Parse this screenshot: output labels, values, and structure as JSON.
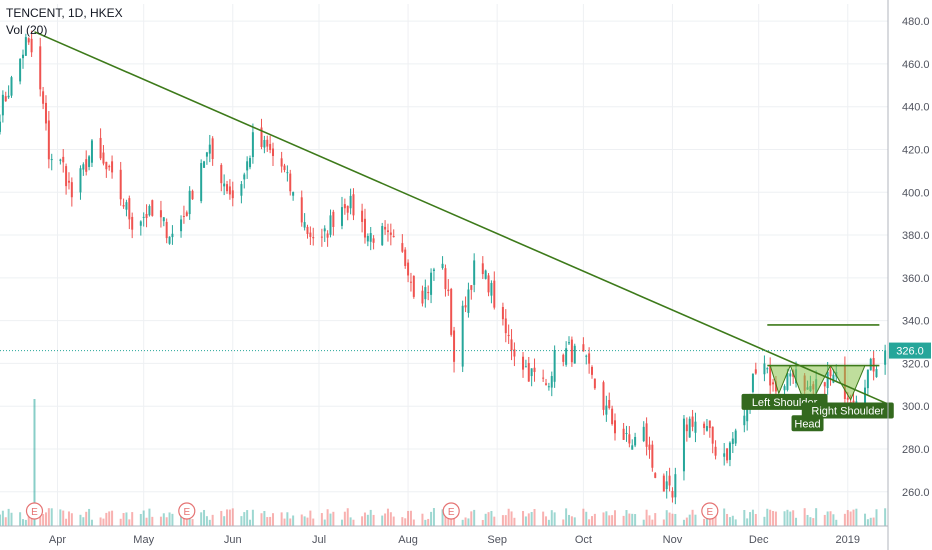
{
  "header": {
    "symbol_line": "TENCENT, 1D, HKEX",
    "volume_label": "Vol (20)"
  },
  "price_tag": {
    "value": "326.0",
    "price": 326.0,
    "color": "#26a69a"
  },
  "colors": {
    "up": "#26a69a",
    "down": "#ef5350",
    "trend": "#3d7a1a",
    "pattern": "#8bc34a",
    "event": "#e57373"
  },
  "event_marker_label": "E",
  "chart_data": {
    "type": "candlestick",
    "ylim": [
      244,
      488
    ],
    "y_ticks": [
      260,
      280,
      300,
      320,
      340,
      360,
      380,
      400,
      420,
      440,
      460,
      480
    ],
    "y_tick_labels": [
      "260.0",
      "280.0",
      "300.0",
      "320.0",
      "340.0",
      "360.0",
      "380.0",
      "400.0",
      "420.0",
      "440.0",
      "460.0",
      "480.0"
    ],
    "x_range": [
      "2018-03-12",
      "2019-01-15"
    ],
    "x_ticks": [
      {
        "label": "Apr",
        "date": "2018-04-01"
      },
      {
        "label": "May",
        "date": "2018-05-01"
      },
      {
        "label": "Jun",
        "date": "2018-06-01"
      },
      {
        "label": "Jul",
        "date": "2018-07-01"
      },
      {
        "label": "Aug",
        "date": "2018-08-01"
      },
      {
        "label": "Sep",
        "date": "2018-09-01"
      },
      {
        "label": "Oct",
        "date": "2018-10-01"
      },
      {
        "label": "Nov",
        "date": "2018-11-01"
      },
      {
        "label": "Dec",
        "date": "2018-12-01"
      },
      {
        "label": "2019",
        "date": "2019-01-01"
      }
    ],
    "price_path": [
      [
        "2018-03-12",
        438
      ],
      [
        "2018-03-15",
        448
      ],
      [
        "2018-03-19",
        462
      ],
      [
        "2018-03-21",
        470
      ],
      [
        "2018-03-23",
        465
      ],
      [
        "2018-03-27",
        440
      ],
      [
        "2018-03-29",
        418
      ],
      [
        "2018-04-03",
        412
      ],
      [
        "2018-04-06",
        398
      ],
      [
        "2018-04-10",
        410
      ],
      [
        "2018-04-13",
        420
      ],
      [
        "2018-04-18",
        410
      ],
      [
        "2018-04-23",
        398
      ],
      [
        "2018-04-27",
        386
      ],
      [
        "2018-05-02",
        390
      ],
      [
        "2018-05-07",
        386
      ],
      [
        "2018-05-11",
        380
      ],
      [
        "2018-05-16",
        392
      ],
      [
        "2018-05-21",
        415
      ],
      [
        "2018-05-24",
        418
      ],
      [
        "2018-05-29",
        405
      ],
      [
        "2018-06-01",
        398
      ],
      [
        "2018-06-05",
        408
      ],
      [
        "2018-06-08",
        424
      ],
      [
        "2018-06-13",
        420
      ],
      [
        "2018-06-18",
        412
      ],
      [
        "2018-06-22",
        398
      ],
      [
        "2018-06-27",
        382
      ],
      [
        "2018-07-02",
        376
      ],
      [
        "2018-07-05",
        386
      ],
      [
        "2018-07-10",
        396
      ],
      [
        "2018-07-13",
        392
      ],
      [
        "2018-07-18",
        380
      ],
      [
        "2018-07-23",
        380
      ],
      [
        "2018-07-27",
        375
      ],
      [
        "2018-08-01",
        366
      ],
      [
        "2018-08-04",
        350
      ],
      [
        "2018-08-08",
        356
      ],
      [
        "2018-08-12",
        372
      ],
      [
        "2018-08-15",
        350
      ],
      [
        "2018-08-17",
        322
      ],
      [
        "2018-08-21",
        350
      ],
      [
        "2018-08-24",
        364
      ],
      [
        "2018-08-29",
        358
      ],
      [
        "2018-09-03",
        336
      ],
      [
        "2018-09-07",
        326
      ],
      [
        "2018-09-12",
        316
      ],
      [
        "2018-09-18",
        310
      ],
      [
        "2018-09-21",
        322
      ],
      [
        "2018-09-26",
        326
      ],
      [
        "2018-10-01",
        322
      ],
      [
        "2018-10-04",
        312
      ],
      [
        "2018-10-09",
        298
      ],
      [
        "2018-10-12",
        290
      ],
      [
        "2018-10-17",
        282
      ],
      [
        "2018-10-22",
        288
      ],
      [
        "2018-10-25",
        272
      ],
      [
        "2018-10-29",
        262
      ],
      [
        "2018-11-01",
        256
      ],
      [
        "2018-11-05",
        290
      ],
      [
        "2018-11-08",
        294
      ],
      [
        "2018-11-13",
        288
      ],
      [
        "2018-11-16",
        280
      ],
      [
        "2018-11-20",
        278
      ],
      [
        "2018-11-23",
        288
      ],
      [
        "2018-11-27",
        298
      ],
      [
        "2018-11-30",
        320
      ],
      [
        "2018-12-03",
        322
      ],
      [
        "2018-12-06",
        308
      ],
      [
        "2018-12-10",
        312
      ],
      [
        "2018-12-13",
        318
      ],
      [
        "2018-12-17",
        304
      ],
      [
        "2018-12-20",
        306
      ],
      [
        "2018-12-24",
        314
      ],
      [
        "2018-12-28",
        312
      ],
      [
        "2019-01-03",
        304
      ],
      [
        "2019-01-08",
        316
      ],
      [
        "2019-01-14",
        326
      ]
    ],
    "trendline": [
      [
        "2018-03-24",
        475
      ],
      [
        "2019-01-15",
        301
      ]
    ],
    "resistance_lines": [
      {
        "from": "2018-12-04",
        "to": "2019-01-12",
        "price": 338
      },
      {
        "from": "2018-12-04",
        "to": "2019-01-12",
        "price": 319
      }
    ],
    "last_price_line": 326,
    "pattern_triangles": [
      [
        [
          "2018-12-05",
          319
        ],
        [
          "2018-12-12",
          319
        ],
        [
          "2018-12-08",
          306
        ]
      ],
      [
        [
          "2018-12-12",
          319
        ],
        [
          "2018-12-26",
          319
        ],
        [
          "2018-12-18",
          298
        ]
      ],
      [
        [
          "2018-12-26",
          319
        ],
        [
          "2019-01-07",
          319
        ],
        [
          "2019-01-02",
          303
        ]
      ]
    ],
    "annotations": [
      {
        "text": "Left Shoulder",
        "date": "2018-12-10",
        "price": 302
      },
      {
        "text": "Head",
        "date": "2018-12-18",
        "price": 292
      },
      {
        "text": "Right Shoulder",
        "date": "2019-01-01",
        "price": 298
      }
    ],
    "volume_spike": {
      "date": "2018-03-24",
      "relative_height": 0.62
    },
    "event_markers": [
      "2018-03-24",
      "2018-05-16",
      "2018-08-16",
      "2018-11-14"
    ]
  }
}
